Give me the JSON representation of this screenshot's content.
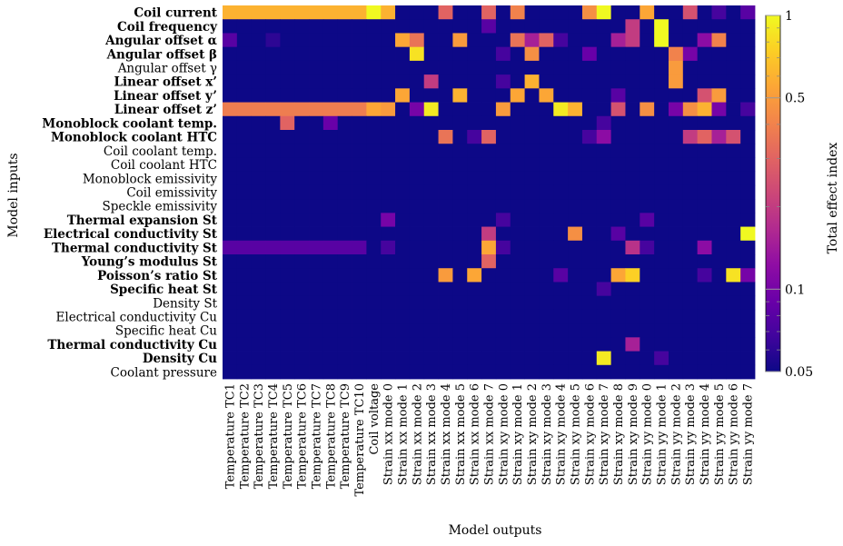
{
  "chart_data": {
    "type": "heatmap",
    "xlabel": "Model outputs",
    "ylabel": "Model inputs",
    "colorbar_label": "Total effect index",
    "color_scale": "log",
    "color_range": [
      0.05,
      1
    ],
    "colorbar_ticks": [
      {
        "value": 0.05,
        "label": "0.05"
      },
      {
        "value": 0.1,
        "label": "0.1"
      },
      {
        "value": 0.5,
        "label": "0.5"
      },
      {
        "value": 1,
        "label": "1"
      }
    ],
    "colormap": "plasma",
    "x_categories": [
      "Temperature TC1",
      "Temperature TC2",
      "Temperature TC3",
      "Temperature TC4",
      "Temperature TC5",
      "Temperature TC6",
      "Temperature TC7",
      "Temperature TC8",
      "Temperature TC9",
      "Temperature TC10",
      "Coil voltage",
      "Strain xx mode 0",
      "Strain xx mode 1",
      "Strain xx mode 2",
      "Strain xx mode 3",
      "Strain xx mode 4",
      "Strain xx mode 5",
      "Strain xx mode 6",
      "Strain xx mode 7",
      "Strain xy mode 0",
      "Strain xy mode 1",
      "Strain xy mode 2",
      "Strain xy mode 3",
      "Strain xy mode 4",
      "Strain xy mode 5",
      "Strain xy mode 6",
      "Strain xy mode 7",
      "Strain xy mode 8",
      "Strain xy mode 9",
      "Strain yy mode 0",
      "Strain yy mode 1",
      "Strain yy mode 2",
      "Strain yy mode 3",
      "Strain yy mode 4",
      "Strain yy mode 5",
      "Strain yy mode 6",
      "Strain yy mode 7"
    ],
    "y_categories": [
      {
        "label": "Coil current",
        "bold": true
      },
      {
        "label": "Coil frequency",
        "bold": true
      },
      {
        "label": "Angular offset α",
        "bold": true
      },
      {
        "label": "Angular offset β",
        "bold": true
      },
      {
        "label": "Angular offset γ",
        "bold": false
      },
      {
        "label": "Linear offset x’",
        "bold": true
      },
      {
        "label": "Linear offset y’",
        "bold": true
      },
      {
        "label": "Linear offset z’",
        "bold": true
      },
      {
        "label": "Monoblock coolant temp.",
        "bold": true
      },
      {
        "label": "Monoblock coolant HTC",
        "bold": true
      },
      {
        "label": "Coil coolant temp.",
        "bold": false
      },
      {
        "label": "Coil coolant HTC",
        "bold": false
      },
      {
        "label": "Monoblock emissivity",
        "bold": false
      },
      {
        "label": "Coil emissivity",
        "bold": false
      },
      {
        "label": "Speckle emissivity",
        "bold": false
      },
      {
        "label": "Thermal expansion St",
        "bold": true
      },
      {
        "label": "Electrical conductivity St",
        "bold": true
      },
      {
        "label": "Thermal conductivity St",
        "bold": true
      },
      {
        "label": "Young’s modulus St",
        "bold": true
      },
      {
        "label": "Poisson’s ratio St",
        "bold": true
      },
      {
        "label": "Specific heat St",
        "bold": true
      },
      {
        "label": "Density St",
        "bold": false
      },
      {
        "label": "Electrical conductivity Cu",
        "bold": false
      },
      {
        "label": "Specific heat Cu",
        "bold": false
      },
      {
        "label": "Thermal conductivity Cu",
        "bold": true
      },
      {
        "label": "Density Cu",
        "bold": true
      },
      {
        "label": "Coolant pressure",
        "bold": false
      }
    ],
    "background_value": 0.05,
    "cells": [
      [
        0,
        0,
        0.6
      ],
      [
        0,
        1,
        0.6
      ],
      [
        0,
        2,
        0.6
      ],
      [
        0,
        3,
        0.6
      ],
      [
        0,
        4,
        0.6
      ],
      [
        0,
        5,
        0.6
      ],
      [
        0,
        6,
        0.6
      ],
      [
        0,
        7,
        0.6
      ],
      [
        0,
        8,
        0.6
      ],
      [
        0,
        9,
        0.6
      ],
      [
        0,
        10,
        1.0
      ],
      [
        0,
        11,
        0.6
      ],
      [
        0,
        15,
        0.3
      ],
      [
        0,
        18,
        0.3
      ],
      [
        0,
        20,
        0.4
      ],
      [
        0,
        25,
        0.45
      ],
      [
        0,
        26,
        1.0
      ],
      [
        0,
        29,
        0.55
      ],
      [
        0,
        32,
        0.25
      ],
      [
        0,
        34,
        0.07
      ],
      [
        0,
        36,
        0.08
      ],
      [
        1,
        18,
        0.08
      ],
      [
        1,
        28,
        0.2
      ],
      [
        1,
        30,
        1.0
      ],
      [
        2,
        0,
        0.08
      ],
      [
        2,
        3,
        0.06
      ],
      [
        2,
        12,
        0.55
      ],
      [
        2,
        13,
        0.35
      ],
      [
        2,
        16,
        0.5
      ],
      [
        2,
        20,
        0.35
      ],
      [
        2,
        21,
        0.15
      ],
      [
        2,
        22,
        0.3
      ],
      [
        2,
        23,
        0.07
      ],
      [
        2,
        27,
        0.15
      ],
      [
        2,
        28,
        0.2
      ],
      [
        2,
        30,
        1.0
      ],
      [
        2,
        33,
        0.12
      ],
      [
        2,
        34,
        0.4
      ],
      [
        3,
        13,
        0.85
      ],
      [
        3,
        19,
        0.07
      ],
      [
        3,
        21,
        0.45
      ],
      [
        3,
        25,
        0.09
      ],
      [
        3,
        31,
        0.4
      ],
      [
        3,
        32,
        0.1
      ],
      [
        4,
        31,
        0.5
      ],
      [
        5,
        14,
        0.2
      ],
      [
        5,
        19,
        0.07
      ],
      [
        5,
        21,
        0.6
      ],
      [
        5,
        31,
        0.5
      ],
      [
        6,
        12,
        0.55
      ],
      [
        6,
        16,
        0.6
      ],
      [
        6,
        20,
        0.55
      ],
      [
        6,
        22,
        0.55
      ],
      [
        6,
        27,
        0.08
      ],
      [
        6,
        33,
        0.25
      ],
      [
        6,
        34,
        0.5
      ],
      [
        7,
        0,
        0.38
      ],
      [
        7,
        1,
        0.38
      ],
      [
        7,
        2,
        0.38
      ],
      [
        7,
        3,
        0.38
      ],
      [
        7,
        4,
        0.38
      ],
      [
        7,
        5,
        0.38
      ],
      [
        7,
        6,
        0.38
      ],
      [
        7,
        7,
        0.38
      ],
      [
        7,
        8,
        0.38
      ],
      [
        7,
        9,
        0.38
      ],
      [
        7,
        10,
        0.55
      ],
      [
        7,
        11,
        0.5
      ],
      [
        7,
        13,
        0.1
      ],
      [
        7,
        14,
        0.9
      ],
      [
        7,
        19,
        0.5
      ],
      [
        7,
        23,
        0.9
      ],
      [
        7,
        24,
        0.6
      ],
      [
        7,
        27,
        0.25
      ],
      [
        7,
        29,
        0.45
      ],
      [
        7,
        31,
        0.1
      ],
      [
        7,
        32,
        0.45
      ],
      [
        7,
        33,
        0.6
      ],
      [
        7,
        34,
        0.1
      ],
      [
        7,
        36,
        0.07
      ],
      [
        8,
        4,
        0.3
      ],
      [
        8,
        7,
        0.09
      ],
      [
        8,
        26,
        0.07
      ],
      [
        9,
        15,
        0.35
      ],
      [
        9,
        17,
        0.07
      ],
      [
        9,
        18,
        0.3
      ],
      [
        9,
        25,
        0.07
      ],
      [
        9,
        26,
        0.12
      ],
      [
        9,
        32,
        0.2
      ],
      [
        9,
        33,
        0.3
      ],
      [
        9,
        34,
        0.15
      ],
      [
        9,
        35,
        0.25
      ],
      [
        15,
        11,
        0.1
      ],
      [
        15,
        19,
        0.07
      ],
      [
        15,
        29,
        0.08
      ],
      [
        16,
        18,
        0.2
      ],
      [
        16,
        24,
        0.45
      ],
      [
        16,
        27,
        0.08
      ],
      [
        16,
        36,
        1.0
      ],
      [
        17,
        0,
        0.08
      ],
      [
        17,
        1,
        0.08
      ],
      [
        17,
        2,
        0.08
      ],
      [
        17,
        3,
        0.08
      ],
      [
        17,
        4,
        0.08
      ],
      [
        17,
        5,
        0.08
      ],
      [
        17,
        6,
        0.08
      ],
      [
        17,
        7,
        0.08
      ],
      [
        17,
        8,
        0.08
      ],
      [
        17,
        9,
        0.08
      ],
      [
        17,
        11,
        0.07
      ],
      [
        17,
        18,
        0.55
      ],
      [
        17,
        19,
        0.07
      ],
      [
        17,
        28,
        0.18
      ],
      [
        17,
        29,
        0.07
      ],
      [
        17,
        33,
        0.12
      ],
      [
        18,
        18,
        0.3
      ],
      [
        19,
        15,
        0.5
      ],
      [
        19,
        17,
        0.55
      ],
      [
        19,
        23,
        0.08
      ],
      [
        19,
        27,
        0.55
      ],
      [
        19,
        28,
        0.75
      ],
      [
        19,
        33,
        0.07
      ],
      [
        19,
        35,
        0.85
      ],
      [
        19,
        36,
        0.1
      ],
      [
        20,
        26,
        0.07
      ],
      [
        24,
        28,
        0.15
      ],
      [
        25,
        26,
        0.9
      ],
      [
        25,
        30,
        0.07
      ]
    ]
  }
}
